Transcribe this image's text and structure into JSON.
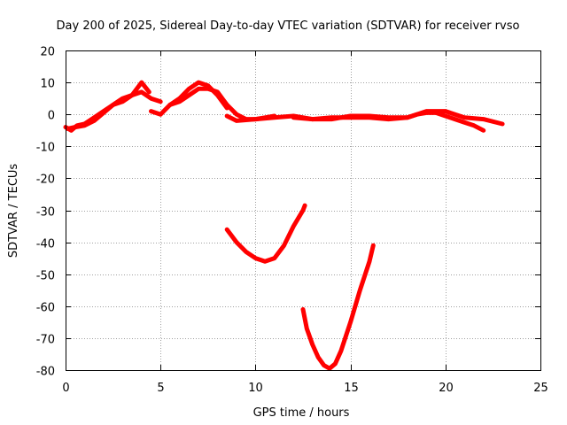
{
  "chart_data": {
    "type": "line",
    "title": "Day 200 of 2025, Sidereal Day-to-day VTEC variation (SDTVAR) for receiver rvso",
    "xlabel": "GPS time / hours",
    "ylabel": "SDTVAR / TECUs",
    "xlim": [
      0,
      25
    ],
    "ylim": [
      -80,
      20
    ],
    "xticks": [
      0,
      5,
      10,
      15,
      20,
      25
    ],
    "xtick_labels": [
      "0",
      "5",
      "10",
      "15",
      "20",
      "25"
    ],
    "yticks": [
      -80,
      -70,
      -60,
      -50,
      -40,
      -30,
      -20,
      -10,
      0,
      10,
      20
    ],
    "ytick_labels": [
      "-80",
      "-70",
      "-60",
      "-50",
      "-40",
      "-30",
      "-20",
      "-10",
      "0",
      "10",
      "20"
    ],
    "grid": true,
    "legend": "none",
    "series_color": "#ff0000",
    "series": [
      {
        "name": "arc 1",
        "x": [
          0.0,
          0.3,
          0.6,
          1.0,
          1.5,
          2.0,
          2.5,
          3.0,
          3.5,
          4.0,
          4.5,
          5.0
        ],
        "y": [
          -4,
          -5,
          -3.5,
          -3,
          -1,
          1,
          3,
          5,
          6,
          7,
          5,
          4
        ]
      },
      {
        "name": "arc 2",
        "x": [
          0.1,
          0.5,
          1.0,
          1.5,
          2.0,
          2.5,
          3.0,
          3.5,
          4.0,
          4.4
        ],
        "y": [
          -4.5,
          -4,
          -3.5,
          -2,
          0.5,
          3,
          4,
          6,
          10,
          7
        ]
      },
      {
        "name": "arc 3",
        "x": [
          4.5,
          5.0,
          5.5,
          6.0,
          6.5,
          7.0,
          7.5,
          8.0,
          8.5,
          9.0,
          9.5,
          10.0,
          10.5,
          11.0
        ],
        "y": [
          1,
          0,
          3,
          4,
          6,
          8,
          8,
          7,
          3,
          0,
          -1.5,
          -1.5,
          -1,
          -0.5
        ]
      },
      {
        "name": "arc 4",
        "x": [
          5.5,
          6.0,
          6.5,
          7.0,
          7.5,
          8.0,
          8.5
        ],
        "y": [
          3,
          5,
          8,
          10,
          9,
          6,
          2
        ]
      },
      {
        "name": "arc 5",
        "x": [
          8.5,
          9.0,
          10.0,
          11.0,
          12.0,
          13.0,
          14.0,
          15.0,
          16.0,
          17.0,
          18.0,
          18.5,
          19.0,
          19.5,
          20.0,
          20.5,
          21.0,
          21.5,
          22.0
        ],
        "y": [
          -0.5,
          -2,
          -1.5,
          -1,
          -0.5,
          -1.5,
          -1,
          -1,
          -1,
          -1.5,
          -1,
          0,
          0.5,
          0.5,
          -0.5,
          -1.5,
          -2.5,
          -3.5,
          -5
        ]
      },
      {
        "name": "arc 6",
        "x": [
          12.0,
          13.0,
          14.0,
          15.0,
          16.0,
          17.0,
          18.0,
          19.0,
          20.0,
          21.0,
          22.0,
          23.0
        ],
        "y": [
          -1,
          -1.5,
          -1.5,
          -0.5,
          -0.5,
          -1,
          -1,
          1,
          1,
          -1,
          -1.5,
          -3
        ]
      },
      {
        "name": "arc 7",
        "x": [
          8.5,
          9.0,
          9.5,
          10.0,
          10.5,
          11.0,
          11.5,
          12.0,
          12.5,
          12.6
        ],
        "y": [
          -36,
          -40,
          -43,
          -45,
          -46,
          -45,
          -41,
          -35,
          -30,
          -28.5
        ]
      },
      {
        "name": "arc 8",
        "x": [
          12.5,
          12.7,
          13.0,
          13.3,
          13.6,
          13.9,
          14.2,
          14.5,
          15.0,
          15.5,
          16.0,
          16.2
        ],
        "y": [
          -61,
          -67,
          -72,
          -76,
          -78.5,
          -79.5,
          -78,
          -74,
          -65,
          -55,
          -46,
          -41
        ]
      }
    ]
  }
}
